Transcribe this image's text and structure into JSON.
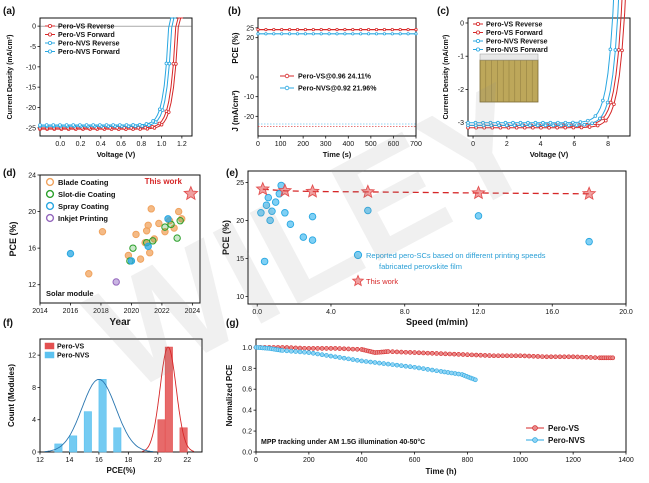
{
  "watermark": "WILEY",
  "chart_data": [
    {
      "panel": "(a)",
      "type": "line",
      "xlabel": "Voltage (V)",
      "ylabel": "Current Density (mA/cm²)",
      "xlim": [
        -0.2,
        1.3
      ],
      "ylim": [
        -27,
        2
      ],
      "xticks": [
        "0.0",
        "0.2",
        "0.4",
        "0.6",
        "0.8",
        "1.0",
        "1.2"
      ],
      "yticks": [
        "0",
        "-5",
        "-10",
        "-15",
        "-20",
        "-25"
      ],
      "legend_position": "top-left",
      "series": [
        {
          "name": "Pero-VS Reverse",
          "color": "#d62728",
          "jsc": -25.3,
          "voc": 1.165
        },
        {
          "name": "Pero-VS Forward",
          "color": "#d62728",
          "jsc": -25.0,
          "voc": 1.14
        },
        {
          "name": "Pero-NVS Reverse",
          "color": "#29a7e1",
          "jsc": -24.6,
          "voc": 1.1
        },
        {
          "name": "Pero-NVS Forward",
          "color": "#29a7e1",
          "jsc": -24.3,
          "voc": 1.07
        }
      ]
    },
    {
      "panel": "(b)",
      "type": "line",
      "xlabel": "Time (s)",
      "ylabel_top": "PCE (%)",
      "ylabel_bottom": "J (mA/cm²)",
      "xlim": [
        0,
        700
      ],
      "xticks": [
        "0",
        "100",
        "200",
        "300",
        "400",
        "500",
        "600",
        "700"
      ],
      "legend_position": "center",
      "series": [
        {
          "name": "Pero-VS@0.96  24.11%",
          "color": "#d62728",
          "pce": 24.11,
          "j": -25.1
        },
        {
          "name": "Pero-NVS@0.92  21.96%",
          "color": "#29a7e1",
          "pce": 21.96,
          "j": -23.9
        }
      ]
    },
    {
      "panel": "(c)",
      "type": "line",
      "xlabel": "Voltage (V)",
      "ylabel": "Current Density (mA/cm²)",
      "xlim": [
        -0.3,
        9.3
      ],
      "ylim": [
        -3.4,
        0.15
      ],
      "xticks": [
        "0",
        "2",
        "4",
        "6",
        "8"
      ],
      "yticks": [
        "0",
        "-1",
        "-2",
        "-3"
      ],
      "legend_position": "top-left",
      "series": [
        {
          "name": "Pero-VS Reverse",
          "color": "#d62728",
          "jsc": -3.15,
          "voc": 8.95
        },
        {
          "name": "Pero-VS Forward",
          "color": "#d62728",
          "jsc": -3.08,
          "voc": 8.75
        },
        {
          "name": "Pero-NVS Reverse",
          "color": "#29a7e1",
          "jsc": -3.08,
          "voc": 8.55
        },
        {
          "name": "Pero-NVS Forward",
          "color": "#29a7e1",
          "jsc": -3.0,
          "voc": 8.25
        }
      ]
    },
    {
      "panel": "(d)",
      "type": "scatter",
      "xlabel": "Year",
      "ylabel": "PCE (%)",
      "xlim": [
        2014,
        2024.5
      ],
      "ylim": [
        10,
        24
      ],
      "xticks": [
        "2014",
        "2016",
        "2018",
        "2020",
        "2022",
        "2024"
      ],
      "yticks": [
        "12",
        "16",
        "20",
        "24"
      ],
      "annotation": "Solar module",
      "highlight": "This work",
      "series": [
        {
          "name": "Blade Coating",
          "color": "#f0a35e",
          "points": [
            [
              2017.2,
              13.2
            ],
            [
              2018.1,
              17.8
            ],
            [
              2019.8,
              15.2
            ],
            [
              2020.3,
              17.5
            ],
            [
              2020.6,
              14.8
            ],
            [
              2020.9,
              16.6
            ],
            [
              2021.0,
              17.9
            ],
            [
              2021.1,
              18.5
            ],
            [
              2021.2,
              15.5
            ],
            [
              2021.3,
              20.3
            ],
            [
              2021.5,
              17.0
            ],
            [
              2021.8,
              18.7
            ],
            [
              2022.2,
              17.8
            ],
            [
              2022.5,
              19.0
            ],
            [
              2022.8,
              18.2
            ],
            [
              2023.1,
              20.0
            ],
            [
              2023.3,
              19.2
            ]
          ]
        },
        {
          "name": "Slot-die Coating",
          "color": "#2ca02c",
          "points": [
            [
              2019.9,
              14.6
            ],
            [
              2020.1,
              16.0
            ],
            [
              2021.0,
              16.6
            ],
            [
              2021.4,
              16.8
            ],
            [
              2022.2,
              18.3
            ],
            [
              2022.6,
              18.6
            ],
            [
              2023.0,
              17.1
            ],
            [
              2023.2,
              19.0
            ]
          ]
        },
        {
          "name": "Spray Coating",
          "color": "#29a7e1",
          "points": [
            [
              2016.0,
              15.4
            ],
            [
              2020.0,
              14.6
            ],
            [
              2021.1,
              16.2
            ],
            [
              2022.4,
              19.2
            ]
          ]
        },
        {
          "name": "Inkjet Printing",
          "color": "#9467bd",
          "points": [
            [
              2019.0,
              12.3
            ]
          ]
        },
        {
          "name": "This work",
          "color": "#e35050",
          "points": [
            [
              2023.9,
              21.96
            ]
          ]
        }
      ]
    },
    {
      "panel": "(e)",
      "type": "scatter",
      "xlabel": "Speed (m/min)",
      "ylabel": "PCE (%)",
      "xlim": [
        -0.5,
        20
      ],
      "ylim": [
        9,
        26.5
      ],
      "xticks": [
        "0.0",
        "4.0",
        "8.0",
        "12.0",
        "16.0",
        "20.0"
      ],
      "yticks": [
        "10",
        "15",
        "20",
        "25"
      ],
      "series": [
        {
          "name": "Reported pero-SCs based on different printing speeds fabricated perovskite film",
          "color": "#29a7e1",
          "points": [
            [
              0.2,
              21.0
            ],
            [
              0.4,
              14.6
            ],
            [
              0.5,
              22.0
            ],
            [
              0.6,
              23.0
            ],
            [
              0.7,
              20.0
            ],
            [
              0.8,
              21.2
            ],
            [
              1.0,
              22.4
            ],
            [
              1.2,
              23.5
            ],
            [
              1.3,
              24.6
            ],
            [
              1.5,
              21.0
            ],
            [
              1.8,
              19.5
            ],
            [
              2.5,
              17.8
            ],
            [
              3.0,
              17.4
            ],
            [
              3.0,
              20.5
            ],
            [
              6.0,
              21.3
            ],
            [
              12.0,
              20.6
            ],
            [
              18.0,
              17.2
            ]
          ]
        },
        {
          "name": "This work",
          "color": "#e35050",
          "points": [
            [
              0.3,
              24.11
            ],
            [
              1.5,
              23.9
            ],
            [
              3.0,
              23.8
            ],
            [
              6.0,
              23.75
            ],
            [
              12.0,
              23.6
            ],
            [
              18.0,
              23.5
            ]
          ]
        }
      ]
    },
    {
      "panel": "(f)",
      "type": "bar",
      "xlabel": "PCE(%)",
      "ylabel": "Count (Modules)",
      "xlim": [
        12,
        23
      ],
      "ylim": [
        0,
        14
      ],
      "xticks": [
        "12",
        "14",
        "16",
        "18",
        "20",
        "22"
      ],
      "yticks": [
        "0",
        "4",
        "8",
        "12"
      ],
      "legend_position": "top-left",
      "series": [
        {
          "name": "Pero-VS",
          "color": "#e35050",
          "bins": [
            [
              20.25,
              4
            ],
            [
              20.75,
              13
            ],
            [
              21.75,
              3
            ]
          ]
        },
        {
          "name": "Pero-NVS",
          "color": "#5cc2f0",
          "bins": [
            [
              13.25,
              1
            ],
            [
              14.25,
              2
            ],
            [
              15.25,
              5
            ],
            [
              16.25,
              9
            ],
            [
              17.25,
              3
            ]
          ]
        }
      ]
    },
    {
      "panel": "(g)",
      "type": "line",
      "xlabel": "Time (h)",
      "ylabel": "Normalized PCE",
      "xlim": [
        0,
        1400
      ],
      "ylim": [
        0,
        1.08
      ],
      "xticks": [
        "0",
        "200",
        "400",
        "600",
        "800",
        "1000",
        "1200",
        "1400"
      ],
      "yticks": [
        "0.0",
        "0.2",
        "0.4",
        "0.6",
        "0.8",
        "1.0"
      ],
      "annotation": "MPP tracking under AM 1.5G illumination 40-50°C",
      "legend_position": "bottom-right",
      "series": [
        {
          "name": "Pero-VS",
          "color": "#d62728",
          "x": [
            0,
            100,
            200,
            300,
            400,
            450,
            500,
            600,
            700,
            800,
            900,
            1000,
            1100,
            1200,
            1300,
            1350
          ],
          "y": [
            1.0,
            1.0,
            0.99,
            0.99,
            0.98,
            0.95,
            0.96,
            0.95,
            0.94,
            0.93,
            0.92,
            0.92,
            0.91,
            0.91,
            0.9,
            0.9
          ]
        },
        {
          "name": "Pero-NVS",
          "color": "#29a7e1",
          "x": [
            0,
            50,
            100,
            200,
            300,
            400,
            500,
            600,
            700,
            780,
            830
          ],
          "y": [
            1.0,
            0.99,
            0.97,
            0.95,
            0.91,
            0.87,
            0.84,
            0.81,
            0.77,
            0.74,
            0.69
          ]
        }
      ]
    }
  ]
}
